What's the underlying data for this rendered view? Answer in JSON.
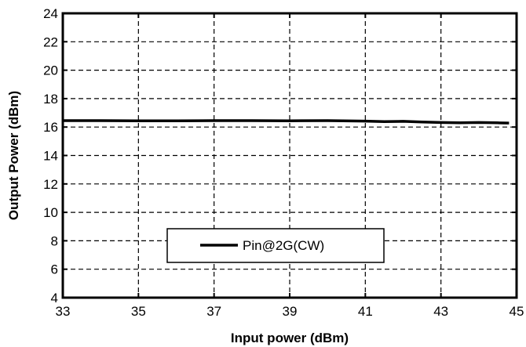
{
  "chart_data": {
    "type": "line",
    "xlabel": "Input power (dBm)",
    "ylabel": "Output Power (dBm)",
    "xlim": [
      33,
      45
    ],
    "ylim": [
      4,
      24
    ],
    "xticks": [
      33,
      35,
      37,
      39,
      41,
      43,
      45
    ],
    "yticks": [
      4,
      6,
      8,
      10,
      12,
      14,
      16,
      18,
      20,
      22,
      24
    ],
    "grid": true,
    "grid_style": "dashed",
    "legend_position": "lower-center",
    "series": [
      {
        "name": "Pin@2G(CW)",
        "color": "#000000",
        "x": [
          33,
          34,
          35,
          36,
          37,
          38,
          39,
          40,
          41,
          41.5,
          42,
          42.5,
          43,
          43.5,
          44,
          44.5,
          44.8
        ],
        "y": [
          16.45,
          16.45,
          16.44,
          16.44,
          16.45,
          16.45,
          16.44,
          16.45,
          16.42,
          16.38,
          16.4,
          16.36,
          16.32,
          16.3,
          16.32,
          16.3,
          16.28
        ]
      }
    ]
  }
}
